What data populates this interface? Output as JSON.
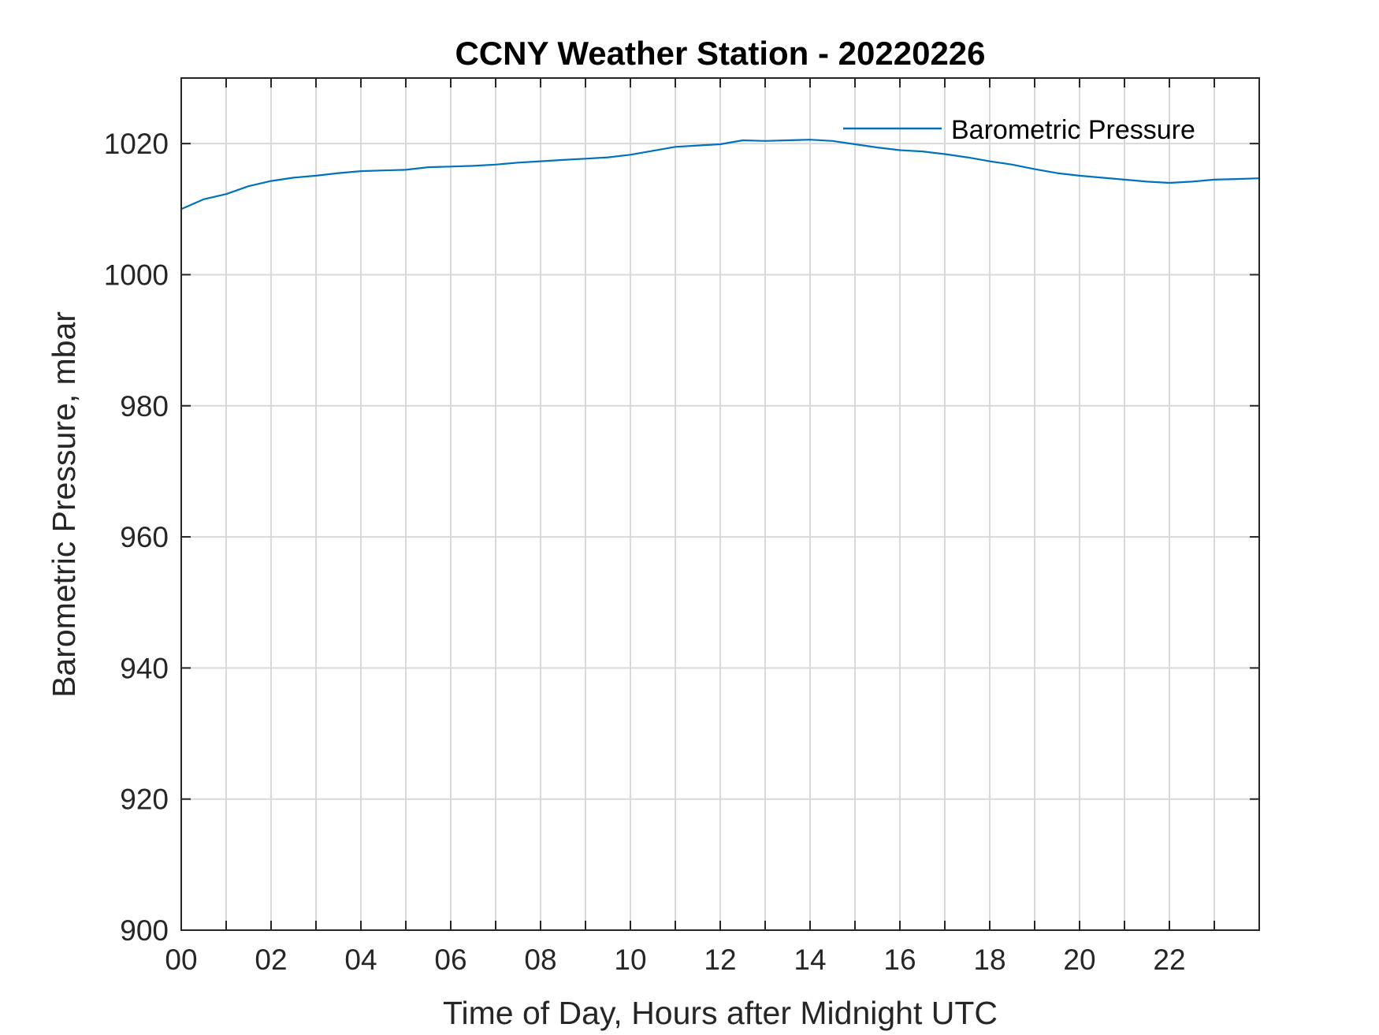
{
  "chart_data": {
    "type": "line",
    "title": "CCNY Weather Station - 20220226",
    "xlabel": "Time of Day, Hours after Midnight UTC",
    "ylabel": "Barometric Pressure, mbar",
    "xlim": [
      0,
      24
    ],
    "ylim": [
      900,
      1030
    ],
    "x_ticks": [
      0,
      2,
      4,
      6,
      8,
      10,
      12,
      14,
      16,
      18,
      20,
      22
    ],
    "x_tick_labels": [
      "00",
      "02",
      "04",
      "06",
      "08",
      "10",
      "12",
      "14",
      "16",
      "18",
      "20",
      "22"
    ],
    "x_grid_interval": 1,
    "y_ticks": [
      900,
      920,
      940,
      960,
      980,
      1000,
      1020
    ],
    "y_tick_labels": [
      "900",
      "920",
      "940",
      "960",
      "980",
      "1000",
      "1020"
    ],
    "grid": true,
    "legend": {
      "position": "top-right",
      "entries": [
        "Barometric Pressure"
      ]
    },
    "colors": {
      "series": "#0072BD",
      "axes": "#262626",
      "grid": "#d9d9d9"
    },
    "series": [
      {
        "name": "Barometric Pressure",
        "x": [
          0,
          0.5,
          1,
          1.5,
          2,
          2.5,
          3,
          3.5,
          4,
          4.5,
          5,
          5.5,
          6,
          6.5,
          7,
          7.5,
          8,
          8.5,
          9,
          9.5,
          10,
          10.5,
          11,
          11.5,
          12,
          12.5,
          13,
          13.5,
          14,
          14.5,
          15,
          15.5,
          16,
          16.5,
          17,
          17.5,
          18,
          18.5,
          19,
          19.5,
          20,
          20.5,
          21,
          21.5,
          22,
          22.5,
          23,
          23.5,
          24
        ],
        "y": [
          1010.0,
          1011.5,
          1012.3,
          1013.5,
          1014.3,
          1014.8,
          1015.1,
          1015.5,
          1015.8,
          1015.9,
          1016.0,
          1016.4,
          1016.5,
          1016.6,
          1016.8,
          1017.1,
          1017.3,
          1017.5,
          1017.7,
          1017.9,
          1018.3,
          1018.9,
          1019.5,
          1019.7,
          1019.9,
          1020.5,
          1020.4,
          1020.5,
          1020.6,
          1020.4,
          1019.9,
          1019.4,
          1019.0,
          1018.8,
          1018.4,
          1017.9,
          1017.3,
          1016.8,
          1016.1,
          1015.5,
          1015.1,
          1014.8,
          1014.5,
          1014.2,
          1014.0,
          1014.2,
          1014.5,
          1014.6,
          1014.7
        ]
      }
    ]
  }
}
